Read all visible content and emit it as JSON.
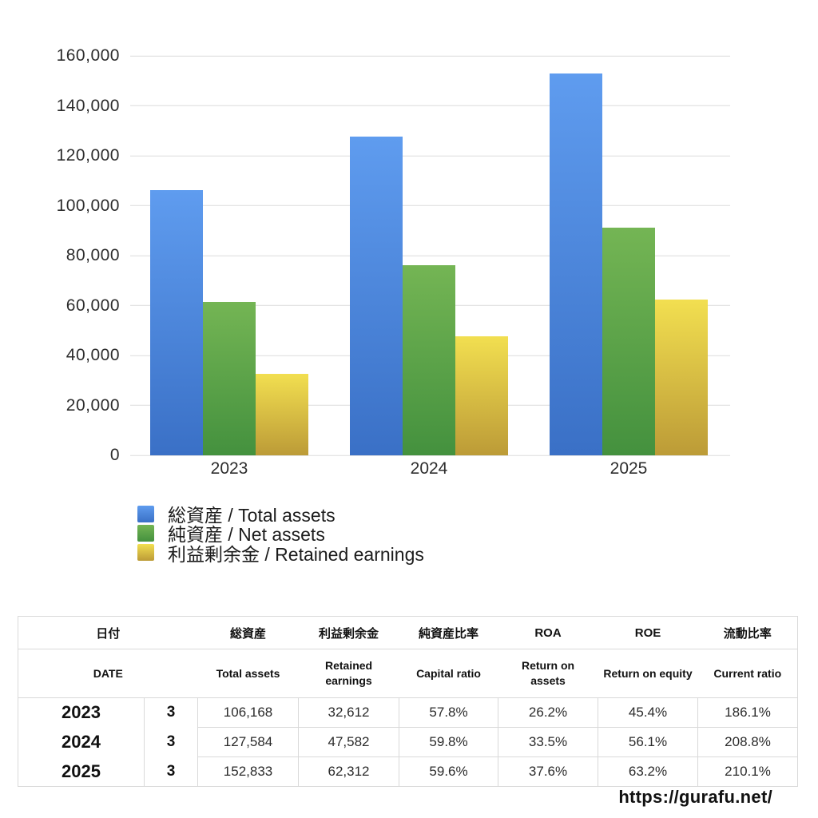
{
  "chart_data": {
    "type": "bar",
    "title": "",
    "xlabel": "",
    "ylabel": "",
    "categories": [
      "2023",
      "2024",
      "2025"
    ],
    "series": [
      {
        "name": "総資産 / Total assets",
        "color_top": "#5f9cef",
        "color_bottom": "#3a70c6",
        "values": [
          106168,
          127584,
          152833
        ]
      },
      {
        "name": "純資産 / Net assets",
        "color_top": "#74b554",
        "color_bottom": "#44913e",
        "values": [
          61365,
          76295,
          91088
        ]
      },
      {
        "name": "利益剰余金 / Retained earnings",
        "color_top": "#f2df50",
        "color_bottom": "#bc9b37",
        "values": [
          32612,
          47582,
          62312
        ]
      }
    ],
    "ylim": [
      0,
      160000
    ],
    "y_ticks": [
      {
        "value": 0,
        "label": "0"
      },
      {
        "value": 20000,
        "label": "20,000"
      },
      {
        "value": 40000,
        "label": "40,000"
      },
      {
        "value": 60000,
        "label": "60,000"
      },
      {
        "value": 80000,
        "label": "80,000"
      },
      {
        "value": 100000,
        "label": "100,000"
      },
      {
        "value": 120000,
        "label": "120,000"
      },
      {
        "value": 140000,
        "label": "140,000"
      },
      {
        "value": 160000,
        "label": "160,000"
      }
    ],
    "grid": true,
    "legend_position": "bottom-left"
  },
  "table": {
    "columns": [
      {
        "jp": "日付",
        "en": "DATE"
      },
      {
        "jp": "総資産",
        "en": "Total assets"
      },
      {
        "jp": "利益剰余金",
        "en": "Retained earnings"
      },
      {
        "jp": "純資産比率",
        "en": "Capital ratio"
      },
      {
        "jp": "ROA",
        "en": "Return on assets"
      },
      {
        "jp": "ROE",
        "en": "Return on equity"
      },
      {
        "jp": "流動比率",
        "en": "Current ratio"
      }
    ],
    "rows": [
      {
        "year": "2023",
        "month": "3",
        "values": [
          "106,168",
          "32,612",
          "57.8%",
          "26.2%",
          "45.4%",
          "186.1%"
        ]
      },
      {
        "year": "2024",
        "month": "3",
        "values": [
          "127,584",
          "47,582",
          "59.8%",
          "33.5%",
          "56.1%",
          "208.8%"
        ]
      },
      {
        "year": "2025",
        "month": "3",
        "values": [
          "152,833",
          "62,312",
          "59.6%",
          "37.6%",
          "63.2%",
          "210.1%"
        ]
      }
    ]
  },
  "footer": {
    "url": "https://gurafu.net/"
  }
}
